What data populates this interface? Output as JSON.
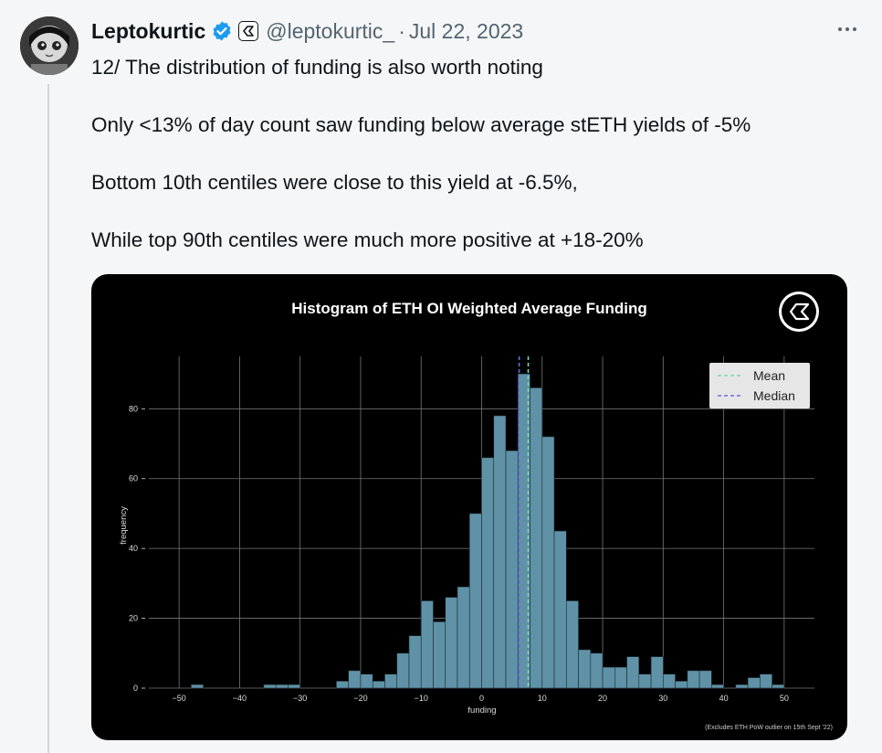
{
  "tweet": {
    "display_name": "Leptokurtic",
    "handle": "@leptokurtic_",
    "separator": "·",
    "date": "Jul 22, 2023",
    "paragraphs": [
      "12/ The distribution of funding is also worth noting",
      "Only <13% of day count saw funding below average stETH yields of -5%",
      "Bottom 10th centiles were close to this yield at -6.5%,",
      "While top 90th centiles were much more positive at +18-20%"
    ]
  },
  "icons": {
    "verified": "verified-badge-icon",
    "affiliate": "affiliate-logo-icon",
    "more": "more-options-icon",
    "chart_logo": "brand-logo-icon"
  },
  "colors": {
    "verified": "#1d9bf0",
    "bar": "#5f92a6",
    "mean_line": "#7fd6b0",
    "median_line": "#6b6be6"
  },
  "chart_data": {
    "type": "bar",
    "title": "Histogram of ETH OI Weighted Average Funding",
    "xlabel": "funding",
    "ylabel": "frequency",
    "footnote": "(Excludes ETH PoW outlier on 15th Sept '22)",
    "xlim": [
      -55,
      55
    ],
    "ylim": [
      0,
      95
    ],
    "xticks": [
      -50,
      -40,
      -30,
      -20,
      -10,
      0,
      10,
      20,
      30,
      40,
      50
    ],
    "yticks": [
      0,
      20,
      40,
      60,
      80
    ],
    "bin_width": 2,
    "bins": [
      {
        "x": -48,
        "count": 1
      },
      {
        "x": -36,
        "count": 1
      },
      {
        "x": -34,
        "count": 1
      },
      {
        "x": -32,
        "count": 1
      },
      {
        "x": -24,
        "count": 2
      },
      {
        "x": -22,
        "count": 5
      },
      {
        "x": -20,
        "count": 4
      },
      {
        "x": -18,
        "count": 2
      },
      {
        "x": -16,
        "count": 4
      },
      {
        "x": -14,
        "count": 10
      },
      {
        "x": -12,
        "count": 15
      },
      {
        "x": -10,
        "count": 25
      },
      {
        "x": -8,
        "count": 19
      },
      {
        "x": -6,
        "count": 26
      },
      {
        "x": -4,
        "count": 29
      },
      {
        "x": -2,
        "count": 50
      },
      {
        "x": 0,
        "count": 66
      },
      {
        "x": 2,
        "count": 78
      },
      {
        "x": 4,
        "count": 68
      },
      {
        "x": 6,
        "count": 90
      },
      {
        "x": 8,
        "count": 86
      },
      {
        "x": 10,
        "count": 72
      },
      {
        "x": 12,
        "count": 45
      },
      {
        "x": 14,
        "count": 25
      },
      {
        "x": 16,
        "count": 11
      },
      {
        "x": 18,
        "count": 10
      },
      {
        "x": 20,
        "count": 6
      },
      {
        "x": 22,
        "count": 6
      },
      {
        "x": 24,
        "count": 9
      },
      {
        "x": 26,
        "count": 4
      },
      {
        "x": 28,
        "count": 9
      },
      {
        "x": 30,
        "count": 4
      },
      {
        "x": 32,
        "count": 2
      },
      {
        "x": 34,
        "count": 5
      },
      {
        "x": 36,
        "count": 5
      },
      {
        "x": 38,
        "count": 1
      },
      {
        "x": 42,
        "count": 1
      },
      {
        "x": 44,
        "count": 3
      },
      {
        "x": 46,
        "count": 4
      },
      {
        "x": 48,
        "count": 1
      }
    ],
    "mean": 7.7,
    "median": 6.2,
    "legend": [
      {
        "label": "Mean",
        "style": "dashed",
        "color": "#7fd6b0"
      },
      {
        "label": "Median",
        "style": "dashed",
        "color": "#6b6be6"
      }
    ],
    "legend_position": "top-right",
    "grid": true
  }
}
